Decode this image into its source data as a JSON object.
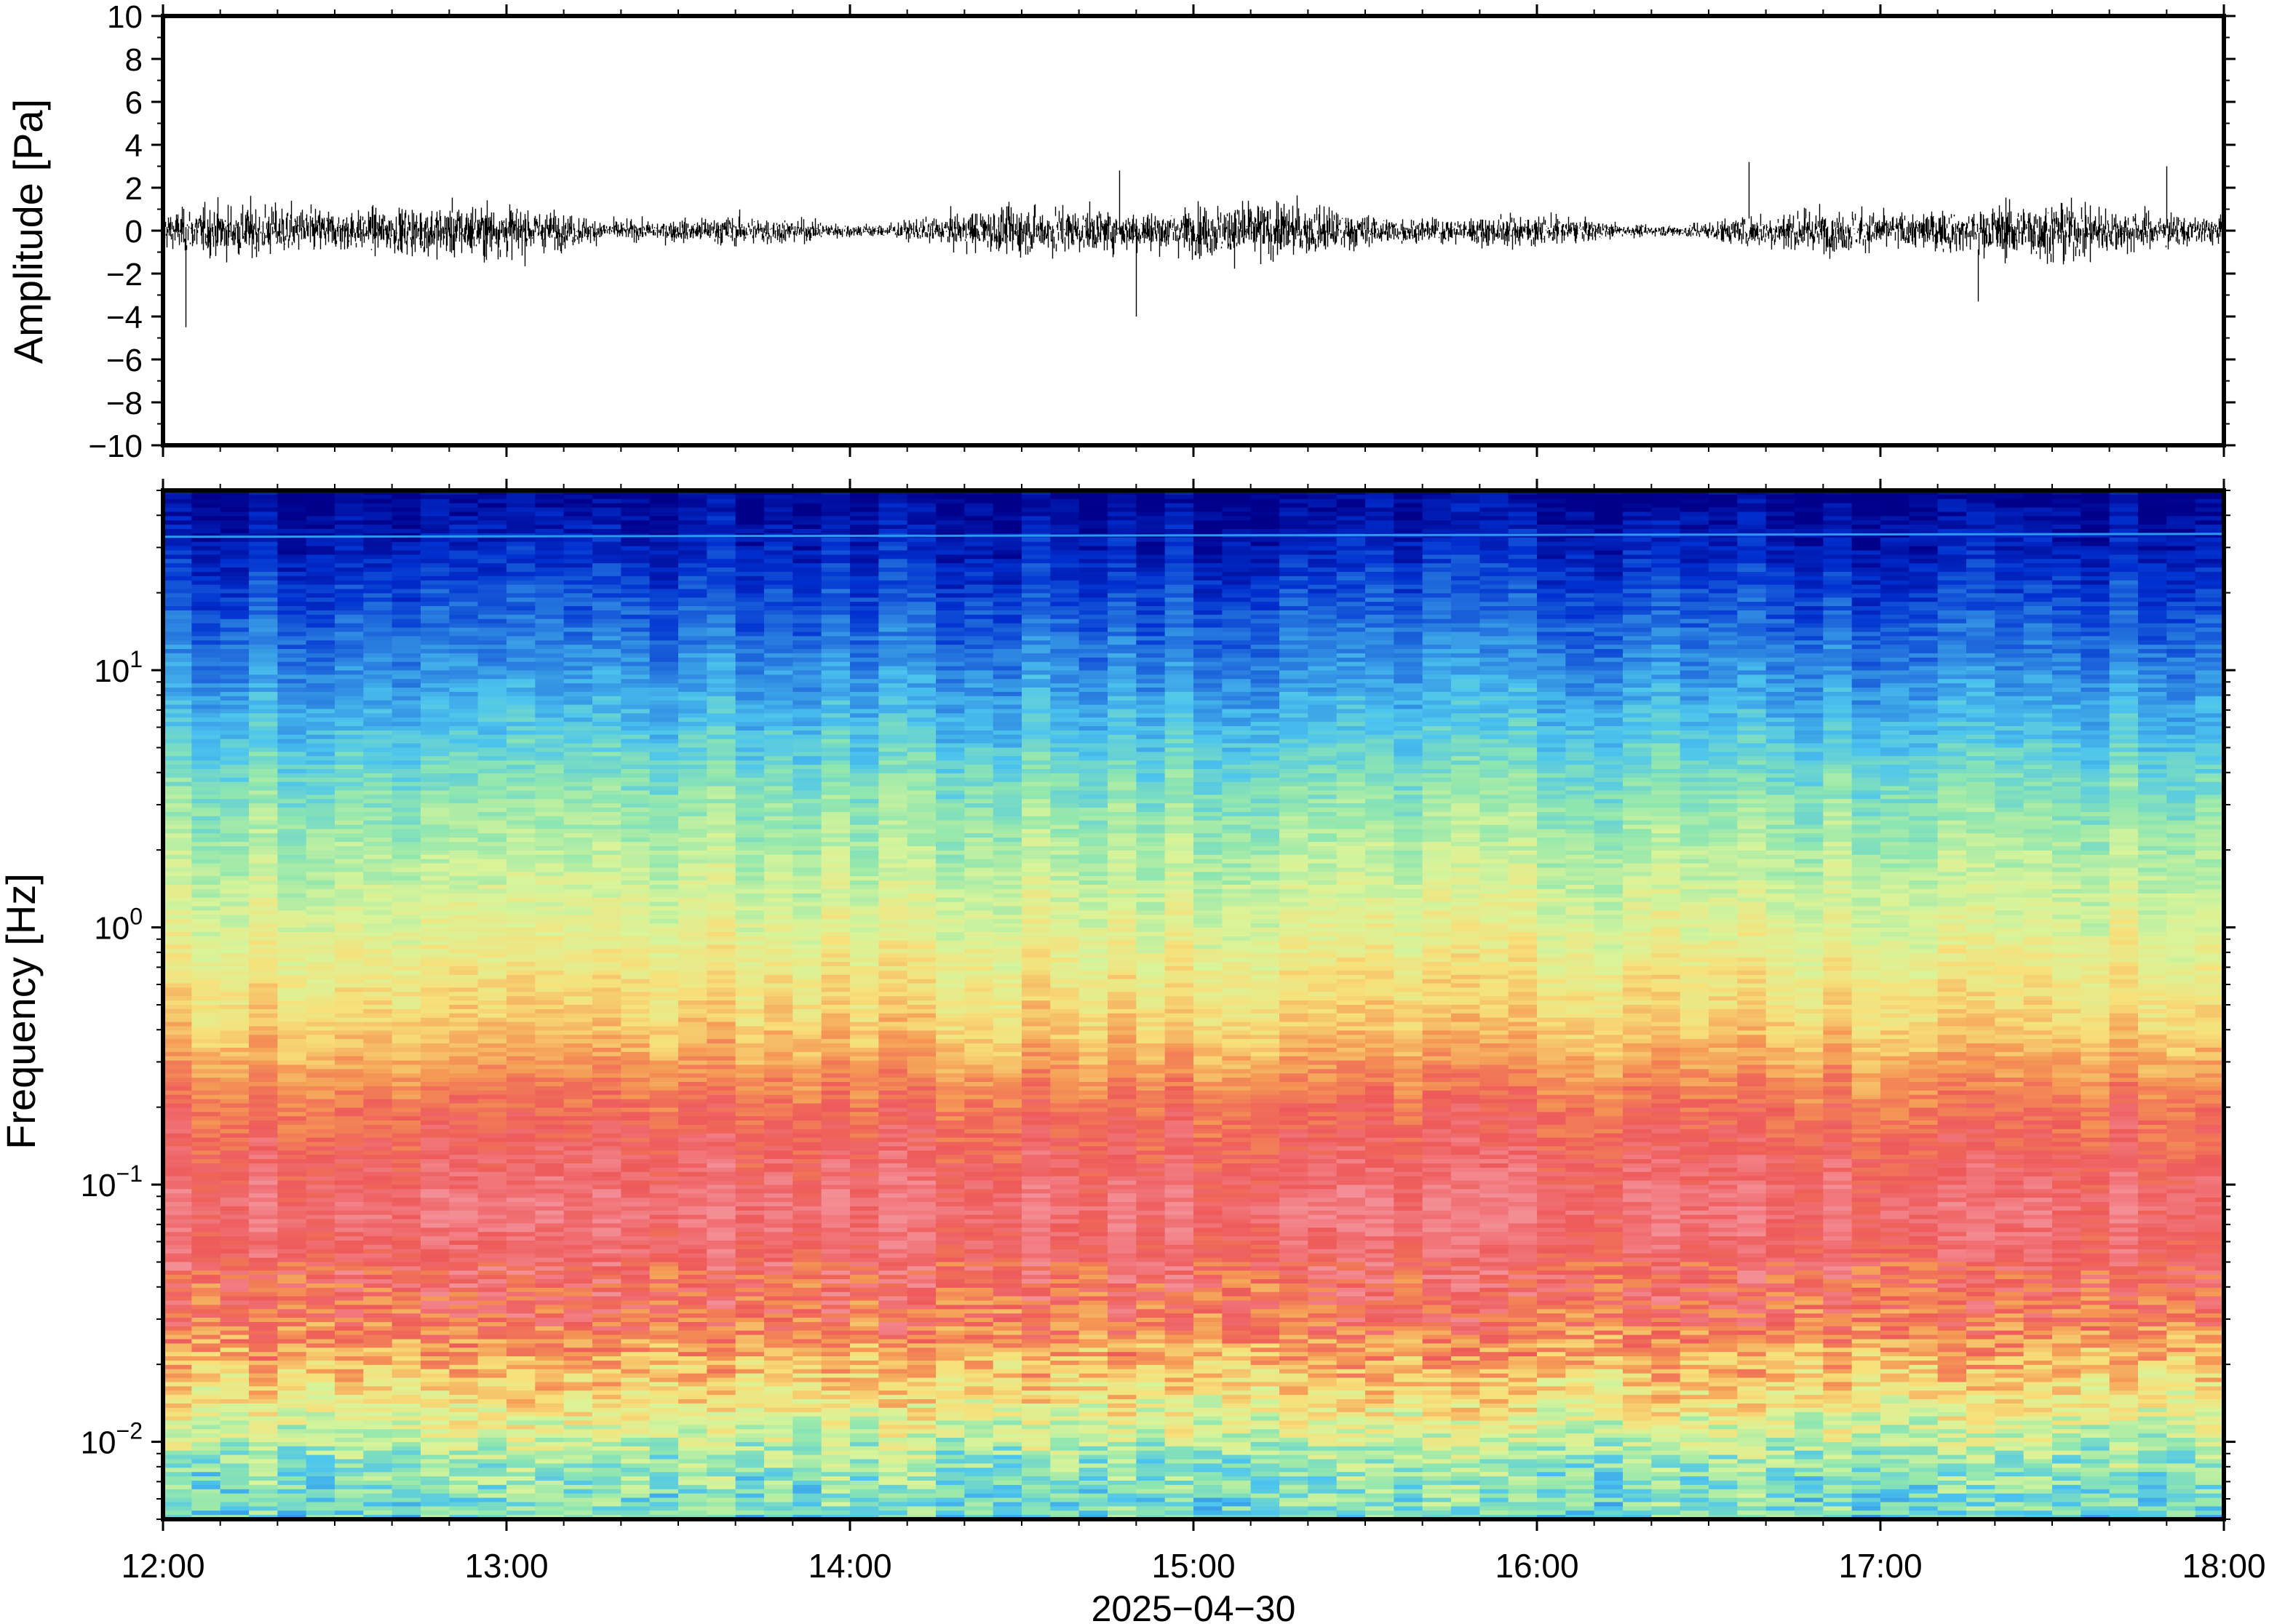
{
  "chart_data": [
    {
      "type": "line",
      "panel": "waveform",
      "ylabel": "Amplitude [Pa]",
      "ylim": [
        -10,
        10
      ],
      "yticks": [
        10,
        8,
        6,
        4,
        2,
        0,
        -2,
        -4,
        -6,
        -8,
        -10
      ],
      "ytick_labels": [
        "10",
        "8",
        "6",
        "4",
        "2",
        "0",
        "−2",
        "−4",
        "−6",
        "−8",
        "−10"
      ],
      "x_range": [
        "2025-04-30 12:00",
        "2025-04-30 18:00"
      ],
      "line_color": "#000000",
      "description_values": {
        "typical_envelope": [
          -2,
          2
        ],
        "peaks": [
          {
            "time": "12:04",
            "value": -4.5
          },
          {
            "time": "14:47",
            "value": 2.8
          },
          {
            "time": "14:50",
            "value": -4.0
          },
          {
            "time": "16:37",
            "value": 3.2
          },
          {
            "time": "17:17",
            "value": -3.3
          },
          {
            "time": "17:50",
            "value": 3.0
          }
        ]
      }
    },
    {
      "type": "heatmap",
      "panel": "spectrogram",
      "ylabel": "Frequency [Hz]",
      "yscale": "log",
      "ylim": [
        0.005,
        50
      ],
      "yticks": [
        0.01,
        0.1,
        1,
        10
      ],
      "ytick_labels": [
        {
          "base": "10",
          "exp": "−2"
        },
        {
          "base": "10",
          "exp": "−1"
        },
        {
          "base": "10",
          "exp": "0"
        },
        {
          "base": "10",
          "exp": "1"
        }
      ],
      "xlabel": "2025−04−30",
      "xticks": [
        "12:00",
        "13:00",
        "14:00",
        "15:00",
        "16:00",
        "17:00",
        "18:00"
      ],
      "colormap": [
        "#00008b",
        "#0030d0",
        "#2a7fe0",
        "#4cc4ee",
        "#8ee6b0",
        "#d8f49a",
        "#f7e07a",
        "#f59a55",
        "#ee5a5a",
        "#f48e96"
      ],
      "power_profile_by_frequency": [
        {
          "freq": 50,
          "level": 0.0
        },
        {
          "freq": 30,
          "level": 0.08
        },
        {
          "freq": 10,
          "level": 0.25
        },
        {
          "freq": 3,
          "level": 0.45
        },
        {
          "freq": 1,
          "level": 0.58
        },
        {
          "freq": 0.4,
          "level": 0.7
        },
        {
          "freq": 0.2,
          "level": 0.85
        },
        {
          "freq": 0.08,
          "level": 0.95
        },
        {
          "freq": 0.03,
          "level": 0.85
        },
        {
          "freq": 0.015,
          "level": 0.65
        },
        {
          "freq": 0.008,
          "level": 0.45
        },
        {
          "freq": 0.005,
          "level": 0.4
        }
      ],
      "narrowband_line_hz": 33
    }
  ]
}
